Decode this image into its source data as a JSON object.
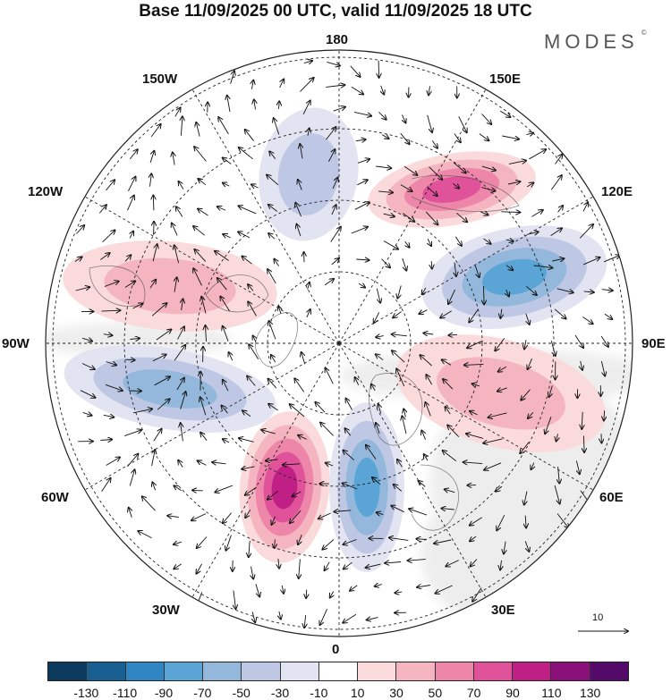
{
  "title": "Base 11/09/2025 00 UTC, valid 11/09/2025 18 UTC",
  "brand": {
    "name": "MODES",
    "mark": "©"
  },
  "longitude_labels": {
    "top": "180",
    "bottom": "0",
    "left": "90W",
    "right": "90E",
    "upper_left_1": "150W",
    "upper_left_2": "120W",
    "upper_right_1": "150E",
    "upper_right_2": "120E",
    "lower_left_1": "60W",
    "lower_left_2": "30W",
    "lower_right_1": "60E",
    "lower_right_2": "30E"
  },
  "reference_vector": {
    "label": "10"
  },
  "colorbar": {
    "colors": [
      "#0c3a5c",
      "#1a5f92",
      "#2f86c2",
      "#5aa4d6",
      "#93b8dc",
      "#bec8e4",
      "#e3e4f1",
      "#ffffff",
      "#fadada",
      "#f4b4c0",
      "#ee86aa",
      "#e0529a",
      "#c01f86",
      "#8a107a",
      "#540a68"
    ],
    "tick_labels": [
      "-130",
      "-110",
      "-90",
      "-70",
      "-50",
      "-30",
      "-10",
      "10",
      "30",
      "50",
      "70",
      "90",
      "110",
      "130"
    ]
  },
  "anomaly_centers": [
    {
      "name": "pos-150e",
      "sign": "positive",
      "value": 90
    },
    {
      "name": "neg-120e",
      "sign": "negative",
      "value": -90
    },
    {
      "name": "pos-60e",
      "sign": "positive",
      "value": 50
    },
    {
      "name": "neg-0",
      "sign": "negative",
      "value": -90
    },
    {
      "name": "pos-30w",
      "sign": "positive",
      "value": 110
    },
    {
      "name": "neg-75w",
      "sign": "negative",
      "value": -70
    },
    {
      "name": "pos-120w",
      "sign": "positive",
      "value": 50
    },
    {
      "name": "neg-180",
      "sign": "negative",
      "value": -50
    }
  ]
}
